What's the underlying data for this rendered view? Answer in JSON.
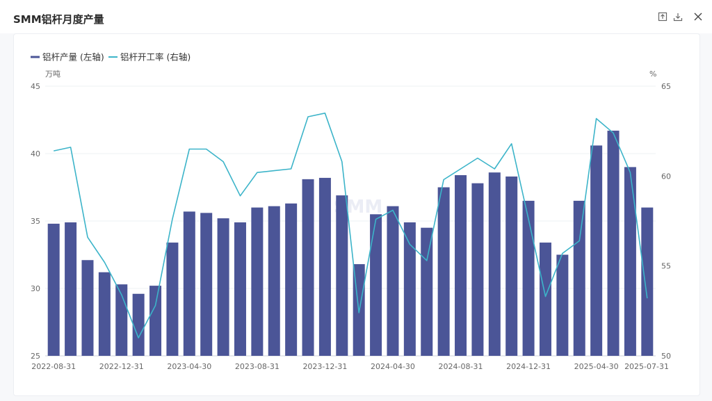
{
  "window": {
    "title": "SMM铝杆月度产量",
    "toolbar": [
      {
        "name": "export-icon",
        "label": "export"
      },
      {
        "name": "download-icon",
        "label": "download"
      },
      {
        "name": "close-icon",
        "label": "close"
      }
    ]
  },
  "watermark": "SMM",
  "colors": {
    "bar": "#4b5597",
    "line": "#3cb4c9",
    "grid": "#eef0f3",
    "axis_text": "#666666"
  },
  "chart_data": {
    "type": "bar",
    "title": "SMM铝杆月度产量",
    "categories": [
      "2022-08-31",
      "2022-09-30",
      "2022-10-31",
      "2022-11-30",
      "2022-12-31",
      "2023-01-31",
      "2023-02-28",
      "2023-03-31",
      "2023-04-30",
      "2023-05-31",
      "2023-06-30",
      "2023-07-31",
      "2023-08-31",
      "2023-09-30",
      "2023-10-31",
      "2023-11-30",
      "2023-12-31",
      "2024-01-31",
      "2024-02-29",
      "2024-03-31",
      "2024-04-30",
      "2024-05-31",
      "2024-06-30",
      "2024-07-31",
      "2024-08-31",
      "2024-09-30",
      "2024-10-31",
      "2024-11-30",
      "2024-12-31",
      "2025-01-31",
      "2025-02-28",
      "2025-03-31",
      "2025-04-30",
      "2025-05-31",
      "2025-06-30",
      "2025-07-31"
    ],
    "x_tick_labels": [
      "2022-08-31",
      "2022-12-31",
      "2023-04-30",
      "2023-08-31",
      "2023-12-31",
      "2024-04-30",
      "2024-08-31",
      "2024-12-31",
      "2025-04-30",
      "2025-07-31"
    ],
    "x_tick_indices": [
      0,
      4,
      8,
      12,
      16,
      20,
      24,
      28,
      32,
      35
    ],
    "series": [
      {
        "name": "铝杆产量 (左轴)",
        "type": "bar",
        "axis": "left",
        "values": [
          34.8,
          34.9,
          32.1,
          31.2,
          30.3,
          29.6,
          30.2,
          33.4,
          35.7,
          35.6,
          35.2,
          34.9,
          36.0,
          36.1,
          36.3,
          38.1,
          38.2,
          36.9,
          31.8,
          35.5,
          36.1,
          34.9,
          34.5,
          37.5,
          38.4,
          37.8,
          38.6,
          38.3,
          36.5,
          33.4,
          32.5,
          36.5,
          40.6,
          41.7,
          39.0,
          36.0
        ]
      },
      {
        "name": "铝杆开工率 (右轴)",
        "type": "line",
        "axis": "right",
        "values": [
          61.4,
          61.6,
          56.6,
          55.2,
          53.4,
          51.0,
          52.8,
          57.6,
          61.5,
          61.5,
          60.8,
          58.9,
          60.2,
          60.3,
          60.4,
          63.3,
          63.5,
          60.8,
          52.4,
          57.6,
          58.1,
          56.2,
          55.3,
          59.8,
          60.4,
          61.0,
          60.4,
          61.8,
          57.6,
          53.3,
          55.7,
          56.4,
          63.2,
          62.4,
          60.2,
          53.2
        ]
      }
    ],
    "left_axis": {
      "unit": "万吨",
      "min": 25,
      "max": 45,
      "ticks": [
        25,
        30,
        35,
        40,
        45
      ]
    },
    "right_axis": {
      "unit": "%",
      "min": 50,
      "max": 65,
      "ticks": [
        50,
        55,
        60,
        65
      ]
    },
    "legend_position": "top-left",
    "grid": true
  }
}
